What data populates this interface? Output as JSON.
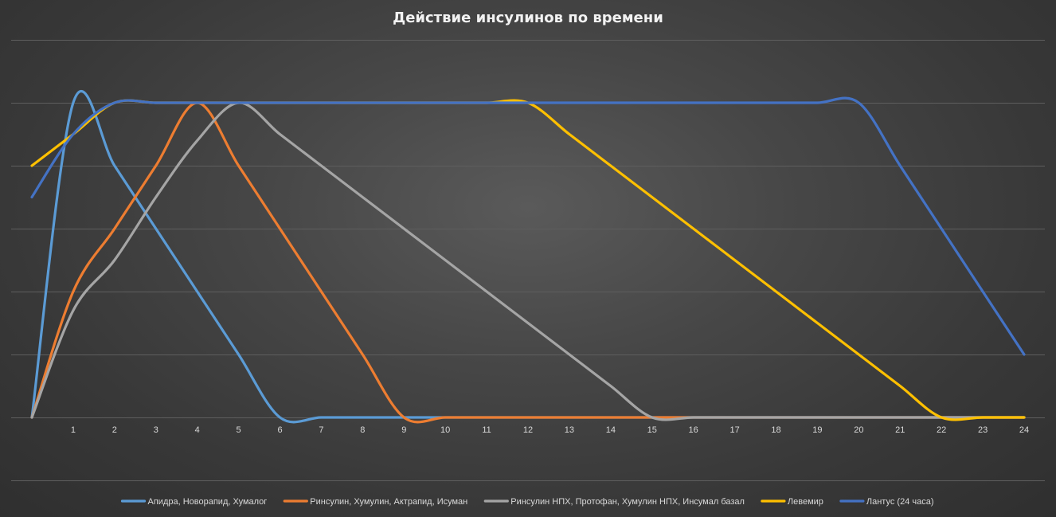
{
  "chart_data": {
    "type": "line",
    "title": "Действие инсулинов по времени",
    "xlabel": "",
    "ylabel": "",
    "x": [
      0,
      1,
      2,
      3,
      4,
      5,
      6,
      7,
      8,
      9,
      10,
      11,
      12,
      13,
      14,
      15,
      16,
      17,
      18,
      19,
      20,
      21,
      22,
      23,
      24
    ],
    "x_tick_labels": [
      "1",
      "2",
      "3",
      "4",
      "5",
      "6",
      "7",
      "8",
      "9",
      "10",
      "11",
      "12",
      "13",
      "14",
      "15",
      "16",
      "17",
      "18",
      "19",
      "20",
      "21",
      "22",
      "23",
      "24"
    ],
    "ylim": [
      0,
      6
    ],
    "y_gridlines": [
      0,
      1,
      2,
      3,
      4,
      5,
      6
    ],
    "y_tick_labels_visible": false,
    "grid": true,
    "legend_position": "bottom",
    "series": [
      {
        "name": "Апидра, Новорапид, Хумалог",
        "color": "#5b9bd5",
        "values": [
          0,
          5,
          4,
          3,
          2,
          1,
          0,
          0,
          0,
          0,
          0,
          0,
          0,
          0,
          0,
          0,
          0,
          0,
          0,
          0,
          0,
          0,
          0,
          0,
          0
        ]
      },
      {
        "name": "Ринсулин, Хумулин, Актрапид, Исуман",
        "color": "#ed7d31",
        "values": [
          0,
          2,
          3,
          4,
          5,
          4,
          3,
          2,
          1,
          0,
          0,
          0,
          0,
          0,
          0,
          0,
          0,
          0,
          0,
          0,
          0,
          0,
          0,
          0,
          0
        ]
      },
      {
        "name": "Ринсулин НПХ, Протофан, Хумулин НПХ, Инсумал базал",
        "color": "#a5a5a5",
        "values": [
          0,
          1.7,
          2.5,
          3.5,
          4.4,
          5,
          4.5,
          4,
          3.5,
          3,
          2.5,
          2,
          1.5,
          1,
          0.5,
          0,
          0,
          0,
          0,
          0,
          0,
          0,
          0,
          0,
          0
        ]
      },
      {
        "name": "Левемир",
        "color": "#ffc000",
        "values": [
          4,
          4.5,
          5,
          5,
          5,
          5,
          5,
          5,
          5,
          5,
          5,
          5,
          5,
          4.5,
          4,
          3.5,
          3,
          2.5,
          2,
          1.5,
          1,
          0.5,
          0,
          0,
          0
        ]
      },
      {
        "name": "Лантус (24 часа)",
        "color": "#4472c4",
        "values": [
          3.5,
          4.5,
          5,
          5,
          5,
          5,
          5,
          5,
          5,
          5,
          5,
          5,
          5,
          5,
          5,
          5,
          5,
          5,
          5,
          5,
          5,
          4,
          3,
          2,
          1
        ]
      }
    ]
  }
}
